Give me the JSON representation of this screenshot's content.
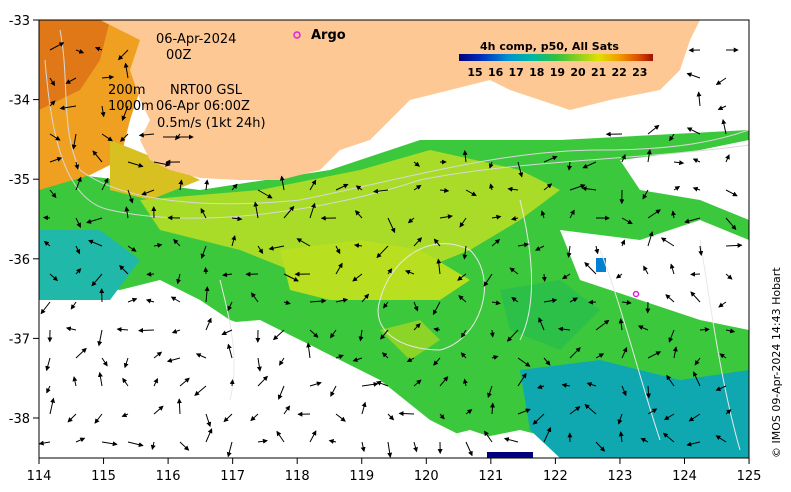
{
  "map": {
    "date_label": "06-Apr-2024",
    "time_label": "00Z",
    "argo_label": "Argo",
    "contour_depth_a": "200m",
    "contour_depth_b": "1000m",
    "current_source": "NRT00 GSL",
    "current_time": "06-Apr 06:00Z",
    "scale_label": "0.5m/s (1kt 24h)",
    "credit": "© IMOS 09-Apr-2024 14:43 Hobart",
    "lon_ticks": [
      "114",
      "115",
      "116",
      "117",
      "118",
      "119",
      "120",
      "121",
      "122",
      "123",
      "124",
      "125"
    ],
    "lat_ticks": [
      "-33",
      "-34",
      "-35",
      "-36",
      "-37",
      "-38"
    ],
    "colors": {
      "land": "#fdc894",
      "argo": "#e020e0",
      "arrow": "#000000"
    }
  },
  "colorbar": {
    "title": "4h comp, p50, All Sats",
    "labels": [
      "15",
      "16",
      "17",
      "18",
      "19",
      "20",
      "21",
      "22",
      "23"
    ],
    "colors": [
      "#00007f",
      "#0030c0",
      "#0090d0",
      "#00b8a0",
      "#30c040",
      "#90d020",
      "#e0e000",
      "#f0a000",
      "#e05000",
      "#a01000"
    ]
  }
}
